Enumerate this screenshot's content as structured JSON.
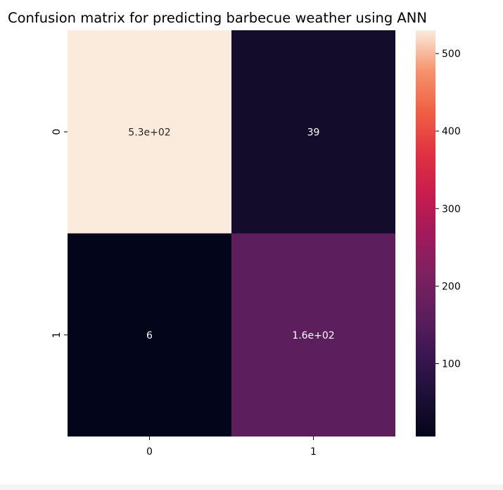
{
  "chart_data": {
    "type": "heatmap",
    "title": "Confusion matrix for predicting barbecue weather using ANN",
    "xlabel": "",
    "ylabel": "",
    "x_categories": [
      "0",
      "1"
    ],
    "y_categories": [
      "0",
      "1"
    ],
    "values": [
      [
        530,
        39
      ],
      [
        6,
        160
      ]
    ],
    "annotations": [
      [
        "5.3e+02",
        "39"
      ],
      [
        "6",
        "1.6e+02"
      ]
    ],
    "colormap": "rocket",
    "colorbar": {
      "ticks": [
        100,
        200,
        300,
        400,
        500
      ],
      "tick_labels": [
        "100",
        "200",
        "300",
        "400",
        "500"
      ],
      "range": [
        6,
        530
      ]
    },
    "grid": false,
    "legend": "colorbar-right"
  }
}
